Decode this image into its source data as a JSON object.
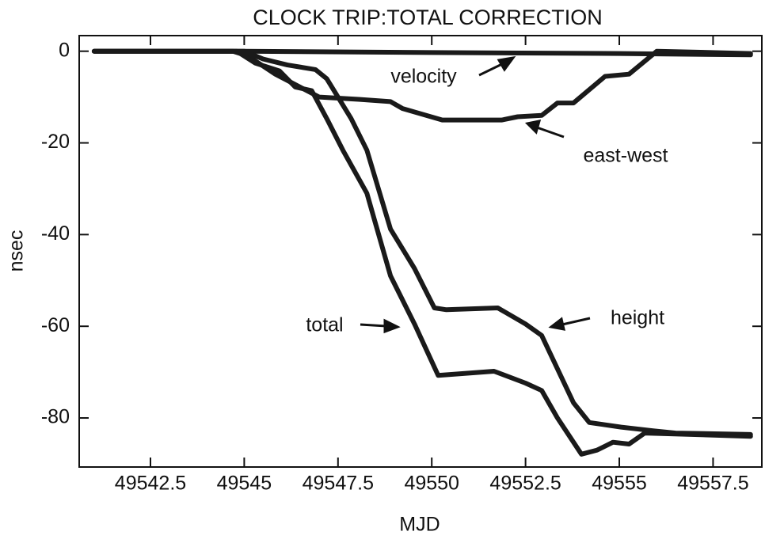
{
  "chart_data": {
    "type": "line",
    "title": "CLOCK TRIP:TOTAL CORRECTION",
    "xlabel": "MJD",
    "ylabel": "nsec",
    "xlim": [
      49540.6,
      49558.8
    ],
    "ylim": [
      -90.7,
      3.4
    ],
    "xticks": [
      49542.5,
      49545,
      49547.5,
      49550,
      49552.5,
      49555,
      49557.5
    ],
    "yticks": [
      0,
      -20,
      -40,
      -60,
      -80
    ],
    "grid": false,
    "series": [
      {
        "name": "velocity",
        "color": "#1a1a1a",
        "x": [
          49541,
          49545,
          49550,
          49555,
          49558.5
        ],
        "values": [
          0,
          0,
          -0.3,
          -0.5,
          -0.8
        ]
      },
      {
        "name": "east-west",
        "color": "#1a1a1a",
        "x": [
          49541,
          49544.7,
          49545.09,
          49545.83,
          49547.0,
          49548.05,
          49548.9,
          49549.22,
          49550.28,
          49551.87,
          49552.29,
          49552.93,
          49553.35,
          49553.78,
          49554.62,
          49555.26,
          49556.0,
          49558.5
        ],
        "values": [
          0,
          0,
          -1,
          -5,
          -10,
          -10.5,
          -11,
          -12.5,
          -15,
          -15,
          -14.3,
          -14,
          -11.3,
          -11.3,
          -5.5,
          -5,
          0,
          -0.5
        ]
      },
      {
        "name": "total",
        "color": "#1a1a1a",
        "x": [
          49541,
          49544.8,
          49545.3,
          49545.94,
          49546.36,
          49546.8,
          49547.2,
          49547.63,
          49548.27,
          49548.48,
          49548.9,
          49549.54,
          49550.17,
          49551.66,
          49552.5,
          49552.93,
          49553.35,
          49553.99,
          49554.41,
          49554.83,
          49555.26,
          49555.68,
          49558.5
        ],
        "values": [
          0,
          0,
          -2.6,
          -4.3,
          -7.8,
          -8.6,
          -14.7,
          -21.6,
          -31,
          -37,
          -49,
          -59.5,
          -70.7,
          -69.8,
          -72.4,
          -74,
          -80,
          -87.9,
          -87,
          -85.3,
          -85.7,
          -83.3,
          -84
        ]
      },
      {
        "name": "height",
        "color": "#1a1a1a",
        "x": [
          49541,
          49545,
          49545.5,
          49546.15,
          49546.9,
          49547.2,
          49547.85,
          49548.27,
          49548.9,
          49549.54,
          49550.07,
          49550.39,
          49551.76,
          49552.5,
          49552.93,
          49553.78,
          49554.2,
          49555.05,
          49555.9,
          49556.5,
          49558.5
        ],
        "values": [
          0,
          0,
          -1.7,
          -3,
          -4,
          -6,
          -14.7,
          -21.6,
          -38.8,
          -47.4,
          -56,
          -56.4,
          -56,
          -59.5,
          -62,
          -76.7,
          -81,
          -82,
          -82.8,
          -83.3,
          -83.6
        ]
      }
    ]
  }
}
